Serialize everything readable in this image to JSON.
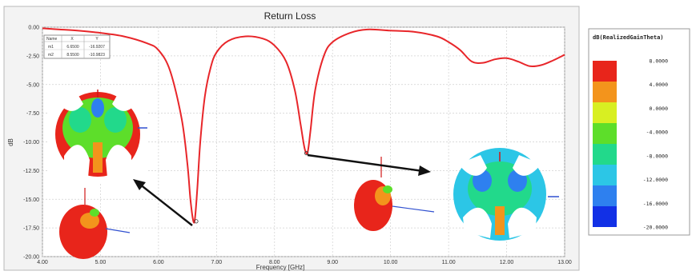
{
  "chart_data": {
    "type": "line",
    "title": "Return Loss",
    "xlabel": "Frequency [GHz]",
    "ylabel": "dB",
    "xlim": [
      4.0,
      13.0
    ],
    "ylim": [
      -20.0,
      0.0
    ],
    "grid": true,
    "x_ticks": [
      "4.00",
      "5.00",
      "6.00",
      "7.00",
      "8.00",
      "9.00",
      "10.00",
      "11.00",
      "12.00",
      "13.00"
    ],
    "y_ticks": [
      "0.00",
      "-2.50",
      "-5.00",
      "-7.50",
      "-10.00",
      "-12.50",
      "-15.00",
      "-17.50",
      "-20.00"
    ],
    "series": [
      {
        "color": "#e8262a",
        "x": [
          4.0,
          4.3,
          4.6,
          5.0,
          5.4,
          5.8,
          6.0,
          6.2,
          6.4,
          6.5,
          6.55,
          6.6,
          6.63,
          6.67,
          6.72,
          6.8,
          6.9,
          7.0,
          7.2,
          7.5,
          7.8,
          8.0,
          8.2,
          8.35,
          8.45,
          8.52,
          8.57,
          8.62,
          8.7,
          8.85,
          9.0,
          9.3,
          9.6,
          10.0,
          10.4,
          10.8,
          11.0,
          11.2,
          11.4,
          11.6,
          11.8,
          12.0,
          12.2,
          12.4,
          12.6,
          12.8,
          13.0
        ],
        "y": [
          -0.1,
          -0.2,
          -0.3,
          -0.5,
          -0.8,
          -1.4,
          -2.0,
          -3.8,
          -8.0,
          -12.0,
          -15.0,
          -16.9,
          -16.6,
          -14.0,
          -10.0,
          -6.0,
          -3.5,
          -2.2,
          -1.2,
          -0.8,
          -1.0,
          -1.6,
          -3.0,
          -5.5,
          -8.5,
          -10.6,
          -10.9,
          -9.0,
          -5.5,
          -2.5,
          -1.3,
          -0.5,
          -0.2,
          -0.3,
          -0.4,
          -0.8,
          -1.3,
          -2.0,
          -3.0,
          -3.1,
          -2.8,
          -2.7,
          -3.0,
          -3.4,
          -3.3,
          -2.9,
          -2.4
        ]
      }
    ],
    "markers": {
      "header": [
        "Name",
        "X",
        "Y"
      ],
      "rows": [
        [
          "m1",
          "6.6500",
          "-16.9207"
        ],
        [
          "m2",
          "8.5500",
          "-10.9823"
        ]
      ]
    },
    "colorbar": {
      "title": "dB(RealizedGainTheta)",
      "labels": [
        "8.0000",
        "4.0000",
        "0.0000",
        "-4.0000",
        "-8.0000",
        "-12.0000",
        "-16.0000",
        "-20.0000"
      ],
      "colors": [
        "#e8251b",
        "#f3941c",
        "#d8ef22",
        "#5dde2a",
        "#22d98b",
        "#2cc6e6",
        "#2e80ef",
        "#1230e6"
      ]
    }
  }
}
